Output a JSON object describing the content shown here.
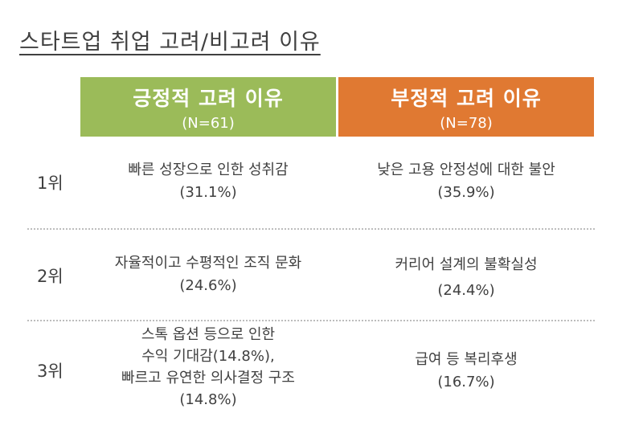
{
  "title": "스타트업 취업 고려/비고려 이유",
  "headers": {
    "positive": {
      "title": "긍정적 고려 이유",
      "n": "(N=61)",
      "color": "#9bbb59"
    },
    "negative": {
      "title": "부정적 고려 이유",
      "n": "(N=78)",
      "color": "#e07932"
    }
  },
  "rows": [
    {
      "rank": "1위",
      "positive": [
        "빠른 성장으로 인한 성취감",
        "(31.1%)"
      ],
      "negative": [
        "낮은 고용 안정성에 대한 불안",
        "(35.9%)"
      ]
    },
    {
      "rank": "2위",
      "positive": [
        "자율적이고 수평적인 조직 문화",
        "(24.6%)"
      ],
      "negative": [
        "커리어 설계의 불확실성",
        "(24.4%)"
      ]
    },
    {
      "rank": "3위",
      "positive": [
        "스톡 옵션 등으로 인한",
        "수익 기대감(14.8%),",
        "빠르고 유연한 의사결정 구조",
        "(14.8%)"
      ],
      "negative": [
        "급여 등 복리후생",
        "(16.7%)"
      ]
    }
  ]
}
